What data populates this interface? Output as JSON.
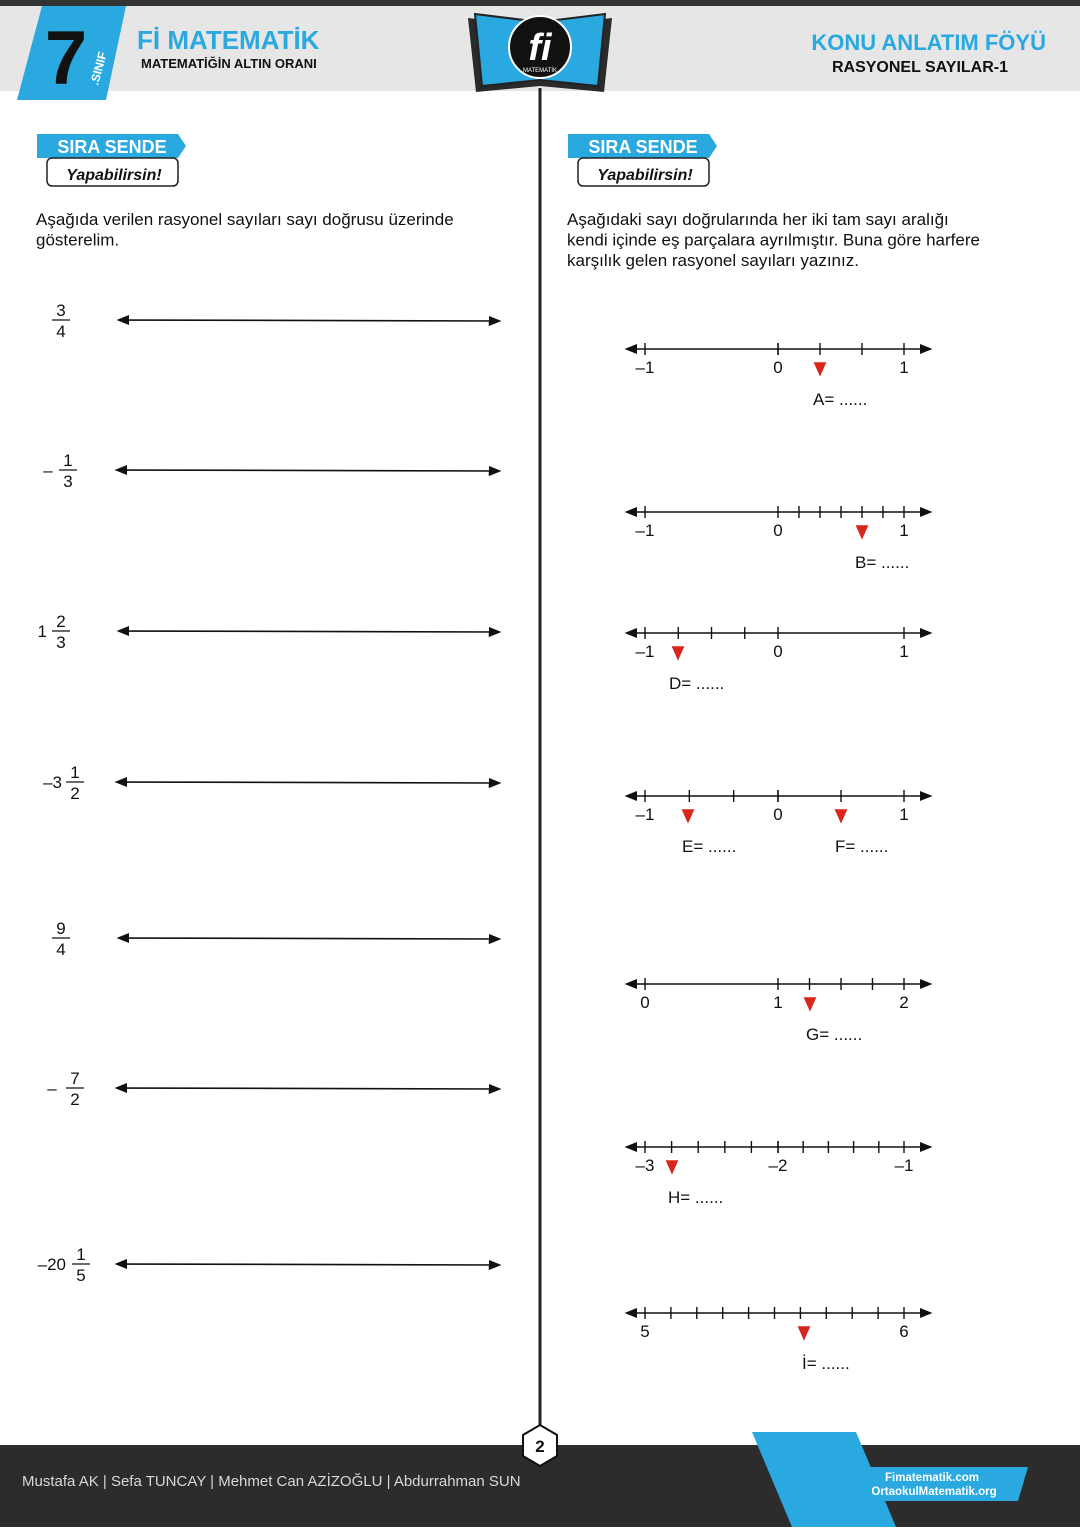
{
  "header": {
    "grade": "7",
    "grade_label": ".SINIF",
    "brand": "Fİ MATEMATİK",
    "slogan": "MATEMATİĞİN ALTIN ORANI",
    "logo_text": "fi",
    "logo_sub": "MATEMATİK",
    "doc_title": "KONU ANLATIM FÖYÜ",
    "doc_subtitle": "RASYONEL SAYILAR-1"
  },
  "left": {
    "badge": "SIRA SENDE",
    "badge_sub": "Yapabilirsin!",
    "instruction": [
      "Aşağıda verilen rasyonel sayıları sayı doğrusu üzerinde",
      "gösterelim."
    ],
    "items": [
      {
        "num": "3",
        "den": "4"
      },
      {
        "sign": "–",
        "num": "1",
        "den": "3"
      },
      {
        "whole": "1",
        "num": "2",
        "den": "3"
      },
      {
        "whole": "–3",
        "num": "1",
        "den": "2"
      },
      {
        "num": "9",
        "den": "4"
      },
      {
        "sign": "–",
        "num": "7",
        "den": "2"
      },
      {
        "whole": "–20",
        "num": "1",
        "den": "5"
      }
    ]
  },
  "right": {
    "badge": "SIRA SENDE",
    "badge_sub": "Yapabilirsin!",
    "instruction": [
      "Aşağıdaki sayı doğrularında her iki tam sayı aralığı",
      "kendi içinde eş parçalara ayrılmıştır. Buna göre harfere",
      "karşılık gelen rasyonel sayıları yazınız."
    ],
    "lines": [
      {
        "labels": [
          "–1",
          "0",
          "1"
        ],
        "answers": [
          "A= ......"
        ]
      },
      {
        "labels": [
          "–1",
          "0",
          "1"
        ],
        "answers": [
          "B= ......"
        ]
      },
      {
        "labels": [
          "–1",
          "0",
          "1"
        ],
        "answers": [
          "D= ......"
        ]
      },
      {
        "labels": [
          "–1",
          "0",
          "1"
        ],
        "answers": [
          "E= ......",
          "F= ......"
        ]
      },
      {
        "labels": [
          "0",
          "1",
          "2"
        ],
        "answers": [
          "G= ......"
        ]
      },
      {
        "labels": [
          "–3",
          "–2",
          "–1"
        ],
        "answers": [
          "H= ......"
        ]
      },
      {
        "labels": [
          "5",
          "6"
        ],
        "answers": [
          "İ= ......"
        ]
      }
    ]
  },
  "footer": {
    "authors": "Mustafa AK | Sefa TUNCAY | Mehmet Can AZİZOĞLU | Abdurrahman SUN",
    "page_number": "2",
    "site_1": "Fimatematik.com",
    "site_2": "OrtaokulMatematik.org"
  }
}
